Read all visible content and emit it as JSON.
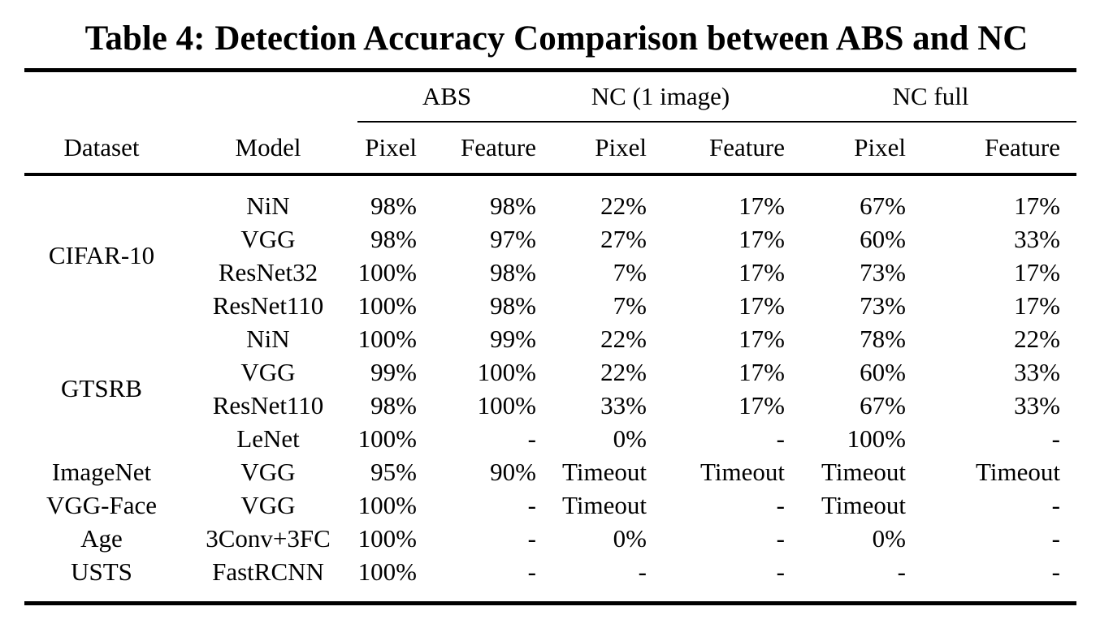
{
  "colors": {
    "text": "#000000",
    "background": "#ffffff",
    "rule": "#000000"
  },
  "title": {
    "label": "Table 4:",
    "text": "Detection Accuracy Comparison between ABS and NC"
  },
  "table": {
    "group_headers": [
      "ABS",
      "NC (1 image)",
      "NC full"
    ],
    "col_headers": [
      "Dataset",
      "Model",
      "Pixel",
      "Feature",
      "Pixel",
      "Feature",
      "Pixel",
      "Feature"
    ],
    "rows": [
      {
        "dataset": "CIFAR-10",
        "dataset_rowspan": 4,
        "model": "NiN",
        "values": [
          "98%",
          "98%",
          "22%",
          "17%",
          "67%",
          "17%"
        ]
      },
      {
        "model": "VGG",
        "values": [
          "98%",
          "97%",
          "27%",
          "17%",
          "60%",
          "33%"
        ]
      },
      {
        "model": "ResNet32",
        "values": [
          "100%",
          "98%",
          "7%",
          "17%",
          "73%",
          "17%"
        ]
      },
      {
        "model": "ResNet110",
        "values": [
          "100%",
          "98%",
          "7%",
          "17%",
          "73%",
          "17%"
        ]
      },
      {
        "dataset": "GTSRB",
        "dataset_rowspan": 4,
        "model": "NiN",
        "values": [
          "100%",
          "99%",
          "22%",
          "17%",
          "78%",
          "22%"
        ]
      },
      {
        "model": "VGG",
        "values": [
          "99%",
          "100%",
          "22%",
          "17%",
          "60%",
          "33%"
        ]
      },
      {
        "model": "ResNet110",
        "values": [
          "98%",
          "100%",
          "33%",
          "17%",
          "67%",
          "33%"
        ]
      },
      {
        "model": "LeNet",
        "values": [
          "100%",
          "-",
          "0%",
          "-",
          "100%",
          "-"
        ]
      },
      {
        "dataset": "ImageNet",
        "dataset_rowspan": 1,
        "model": "VGG",
        "values": [
          "95%",
          "90%",
          "Timeout",
          "Timeout",
          "Timeout",
          "Timeout"
        ]
      },
      {
        "dataset": "VGG-Face",
        "dataset_rowspan": 1,
        "model": "VGG",
        "values": [
          "100%",
          "-",
          "Timeout",
          "-",
          "Timeout",
          "-"
        ]
      },
      {
        "dataset": "Age",
        "dataset_rowspan": 1,
        "model": "3Conv+3FC",
        "values": [
          "100%",
          "-",
          "0%",
          "-",
          "0%",
          "-"
        ]
      },
      {
        "dataset": "USTS",
        "dataset_rowspan": 1,
        "model": "FastRCNN",
        "values": [
          "100%",
          "-",
          "-",
          "-",
          "-",
          "-"
        ]
      }
    ]
  }
}
